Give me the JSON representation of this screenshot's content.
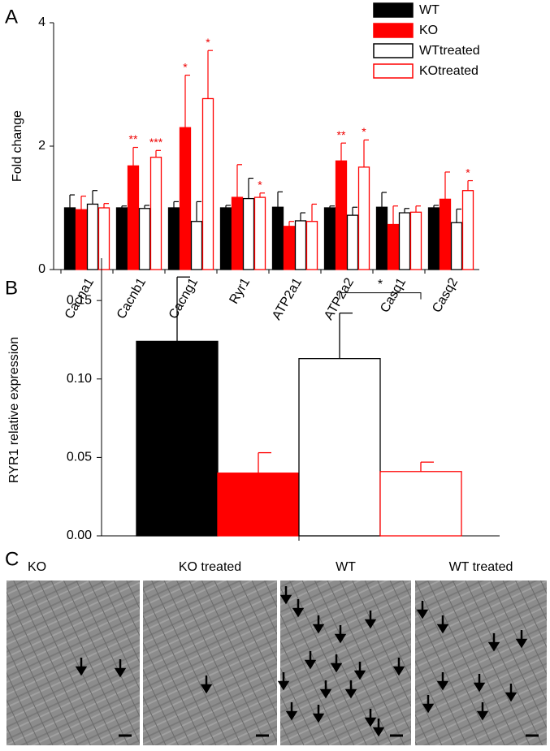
{
  "panel_labels": [
    "A",
    "B",
    "C"
  ],
  "chart_data": [
    {
      "type": "bar",
      "ylabel": "Fold change",
      "categories": [
        "Cacna1",
        "Cacnb1",
        "Cacng1",
        "Ryr1",
        "ATP2a1",
        "ATP2a2",
        "Casq1",
        "Casq2"
      ],
      "ylim": [
        0,
        4
      ],
      "yticks": [
        0,
        2,
        4
      ],
      "series": [
        {
          "name": "WT",
          "color": "#000000",
          "fill": "#000000",
          "values": [
            1.0,
            1.0,
            1.0,
            1.0,
            1.01,
            1.0,
            1.01,
            1.0
          ],
          "errors": [
            0.21,
            0.03,
            0.1,
            0.04,
            0.25,
            0.03,
            0.24,
            0.04
          ],
          "annotations": [
            null,
            null,
            null,
            null,
            null,
            null,
            null,
            null
          ]
        },
        {
          "name": "KO",
          "color": "#ff0000",
          "fill": "#ff0000",
          "values": [
            0.97,
            1.68,
            2.3,
            1.17,
            0.7,
            1.76,
            0.73,
            1.14
          ],
          "errors": [
            0.22,
            0.3,
            0.85,
            0.53,
            0.08,
            0.29,
            0.3,
            0.44
          ],
          "annotations": [
            null,
            "**",
            "*",
            null,
            null,
            "**",
            null,
            null
          ]
        },
        {
          "name": "WTtreated",
          "color": "#000000",
          "fill": "#ffffff",
          "values": [
            1.06,
            0.99,
            0.78,
            1.15,
            0.79,
            0.88,
            0.92,
            0.76
          ],
          "errors": [
            0.22,
            0.05,
            0.32,
            0.33,
            0.13,
            0.13,
            0.07,
            0.22
          ],
          "annotations": [
            null,
            null,
            null,
            null,
            null,
            null,
            null,
            null
          ]
        },
        {
          "name": "KOtreated",
          "color": "#ff0000",
          "fill": "#ffffff",
          "values": [
            1.0,
            1.82,
            2.77,
            1.17,
            0.78,
            1.66,
            0.93,
            1.28
          ],
          "errors": [
            0.07,
            0.11,
            0.78,
            0.07,
            0.28,
            0.44,
            0.1,
            0.16
          ],
          "annotations": [
            null,
            "***",
            "*",
            "*",
            null,
            "*",
            null,
            "*"
          ]
        }
      ]
    },
    {
      "type": "bar",
      "ylabel": "RYR1 relative expression",
      "ylim": [
        0,
        0.177
      ],
      "yticks": [
        {
          "value": 0,
          "label": "0.00"
        },
        {
          "value": 0.05,
          "label": "0.05"
        },
        {
          "value": 0.1,
          "label": "0.10"
        },
        {
          "value": 0.15,
          "label": "0.15"
        }
      ],
      "values": [
        0.124,
        0.04,
        0.113,
        0.041
      ],
      "errors": [
        0.041,
        0.013,
        0.029,
        0.006
      ],
      "colors": [
        "#000000",
        "#ff0000",
        "#000000",
        "#ff0000"
      ],
      "fills": [
        "#000000",
        "#ff0000",
        "#ffffff",
        "#ffffff"
      ],
      "bracket": {
        "label": "*"
      }
    }
  ],
  "images": [
    "KO",
    "KO treated",
    "WT",
    "WT treated"
  ]
}
